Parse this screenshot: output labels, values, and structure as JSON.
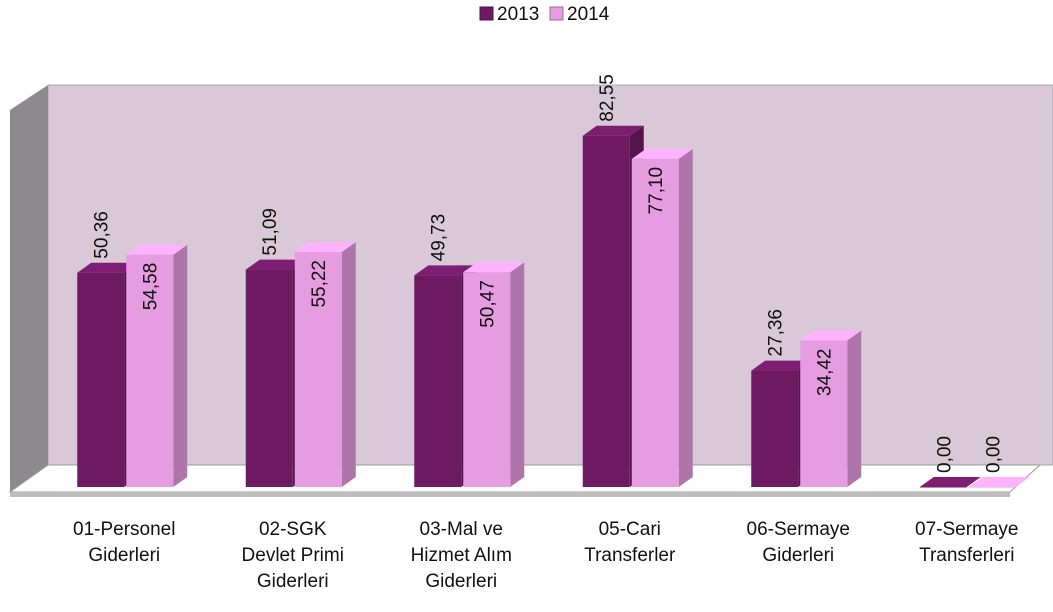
{
  "chart_data": {
    "type": "bar3d",
    "categories": [
      "01-Personel\nGiderleri",
      "02-SGK\nDevlet Primi\nGiderleri",
      "03-Mal ve\nHizmet Alım\nGiderleri",
      "05-Cari\nTransferler",
      "06-Sermaye\nGiderleri",
      "07-Sermaye\nTransferleri"
    ],
    "series": [
      {
        "name": "2013",
        "color": "#6e1a63",
        "values": [
          50.36,
          51.09,
          49.73,
          82.55,
          27.36,
          0.0
        ],
        "value_labels": [
          "50,36",
          "51,09",
          "49,73",
          "82,55",
          "27,36",
          "0,00"
        ]
      },
      {
        "name": "2014",
        "color": "#e69ce0",
        "values": [
          54.58,
          55.22,
          50.47,
          77.1,
          34.42,
          0.0
        ],
        "value_labels": [
          "54,58",
          "55,22",
          "50,47",
          "77,10",
          "34,42",
          "0,00"
        ]
      }
    ],
    "ylim": [
      0,
      90
    ],
    "legend": "top"
  }
}
